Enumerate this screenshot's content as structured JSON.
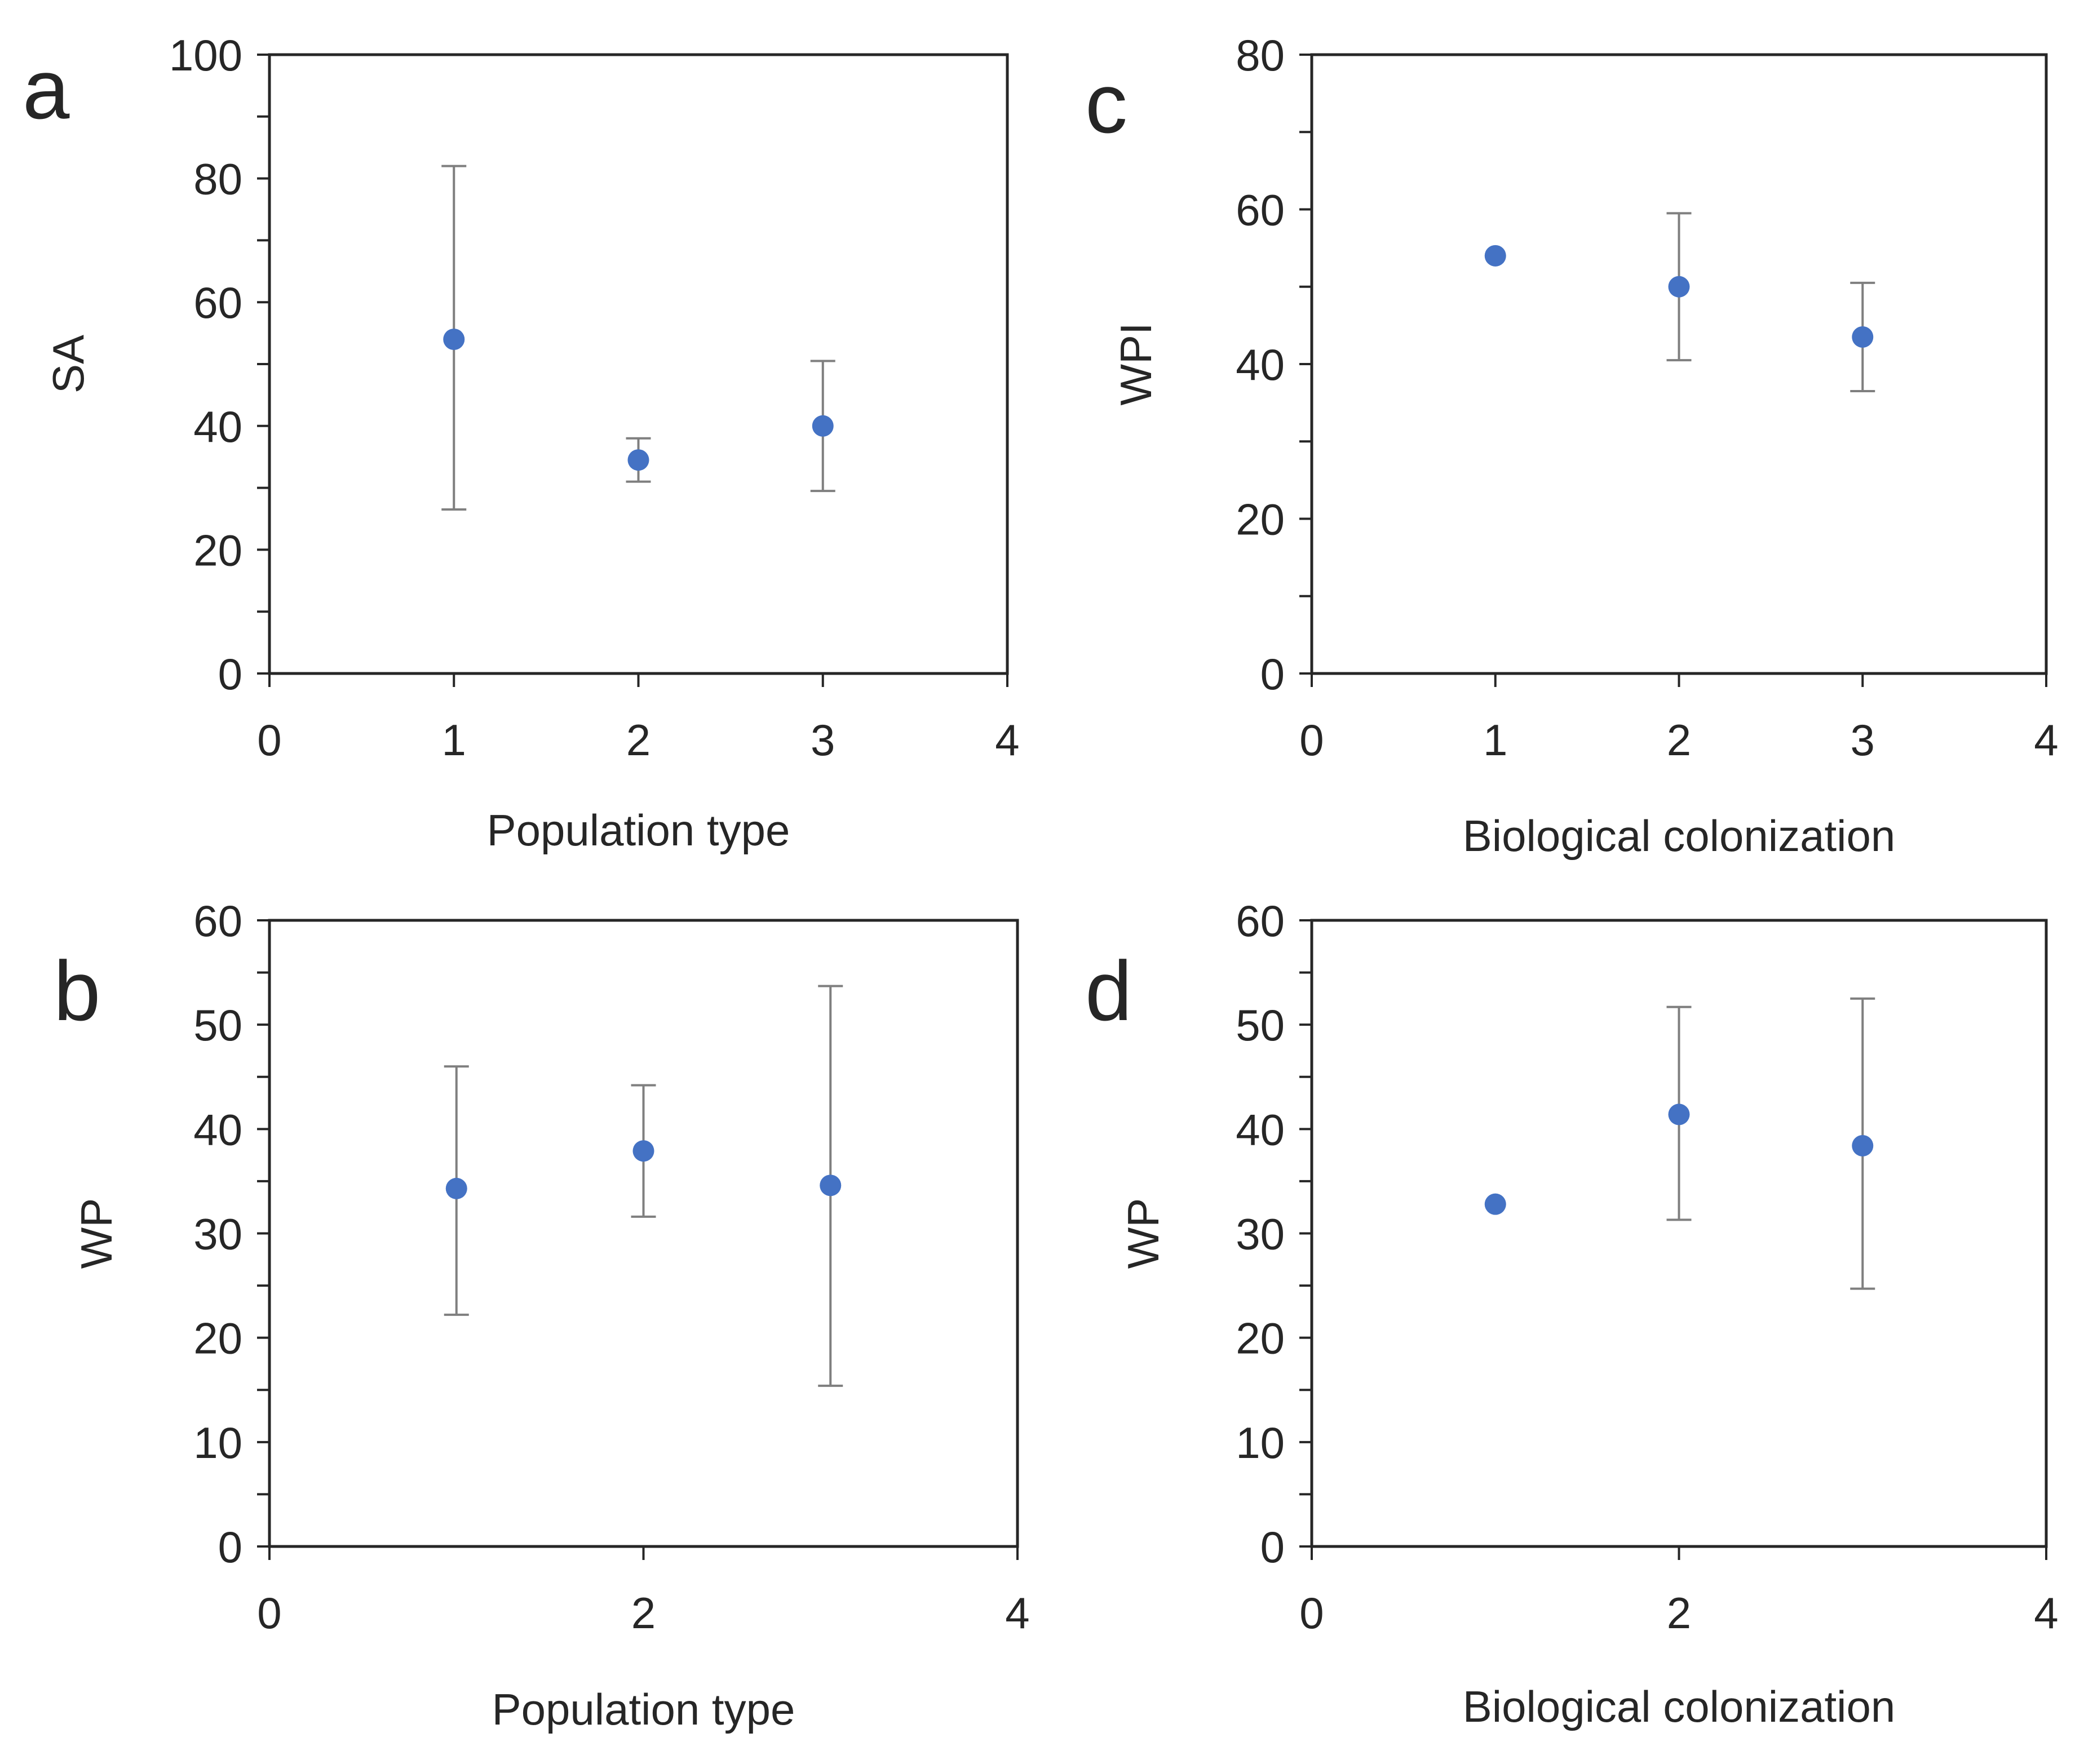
{
  "colors": {
    "marker": "#4472C4",
    "axis": "#262626",
    "error_bar": "#7f7f7f",
    "background": "#ffffff"
  },
  "chart_data": [
    {
      "panel": "a",
      "type": "scatter",
      "xlabel": "Population type",
      "ylabel": "SA",
      "xlim": [
        0,
        4
      ],
      "ylim": [
        0,
        100
      ],
      "xticks": [
        0,
        1,
        2,
        3,
        4
      ],
      "yticks": [
        0,
        20,
        40,
        60,
        80,
        100
      ],
      "y_minor_step": 10,
      "points": [
        {
          "x": 1,
          "y": 54,
          "err_low": 26.5,
          "err_high": 82
        },
        {
          "x": 2,
          "y": 34.5,
          "err_low": 31,
          "err_high": 38
        },
        {
          "x": 3,
          "y": 40,
          "err_low": 29.5,
          "err_high": 50.5
        }
      ]
    },
    {
      "panel": "c",
      "type": "scatter",
      "xlabel": "Biological colonization",
      "ylabel": "WPI",
      "xlim": [
        0,
        4
      ],
      "ylim": [
        0,
        80
      ],
      "xticks": [
        0,
        1,
        2,
        3,
        4
      ],
      "yticks": [
        0,
        20,
        40,
        60,
        80
      ],
      "y_minor_step": 10,
      "points": [
        {
          "x": 1,
          "y": 54,
          "err_low": null,
          "err_high": null
        },
        {
          "x": 2,
          "y": 50,
          "err_low": 40.5,
          "err_high": 59.5
        },
        {
          "x": 3,
          "y": 43.5,
          "err_low": 36.5,
          "err_high": 50.5
        }
      ]
    },
    {
      "panel": "b",
      "type": "scatter",
      "xlabel": "Population type",
      "ylabel": "WP",
      "xlim": [
        0,
        4
      ],
      "ylim": [
        0,
        60
      ],
      "xticks": [
        0,
        2,
        4
      ],
      "yticks": [
        0,
        10,
        20,
        30,
        40,
        50,
        60
      ],
      "y_minor_step": 5,
      "points": [
        {
          "x": 1,
          "y": 34.3,
          "err_low": 22.2,
          "err_high": 46
        },
        {
          "x": 2,
          "y": 37.9,
          "err_low": 31.6,
          "err_high": 44.2
        },
        {
          "x": 3,
          "y": 34.6,
          "err_low": 15.4,
          "err_high": 53.7
        }
      ]
    },
    {
      "panel": "d",
      "type": "scatter",
      "xlabel": "Biological colonization",
      "ylabel": "WP",
      "xlim": [
        0,
        4
      ],
      "ylim": [
        0,
        60
      ],
      "xticks": [
        0,
        2,
        4
      ],
      "yticks": [
        0,
        10,
        20,
        30,
        40,
        50,
        60
      ],
      "y_minor_step": 5,
      "points": [
        {
          "x": 1,
          "y": 32.8,
          "err_low": null,
          "err_high": null
        },
        {
          "x": 2,
          "y": 41.4,
          "err_low": 31.3,
          "err_high": 51.7
        },
        {
          "x": 3,
          "y": 38.4,
          "err_low": 24.7,
          "err_high": 52.5
        }
      ]
    }
  ]
}
